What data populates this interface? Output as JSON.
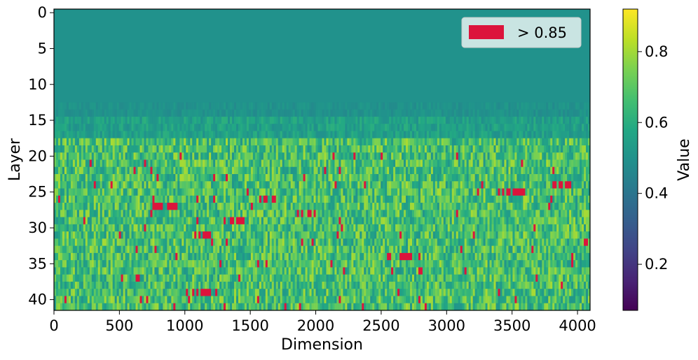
{
  "chart_data": {
    "type": "heatmap",
    "title": "",
    "xlabel": "Dimension",
    "ylabel": "Layer",
    "xlim": [
      0,
      4096
    ],
    "ylim": [
      41.5,
      -0.5
    ],
    "layers": 42,
    "dimensions": 4096,
    "x_ticks": [
      0,
      500,
      1000,
      1500,
      2000,
      2500,
      3000,
      3500,
      4000
    ],
    "y_ticks": [
      0,
      5,
      10,
      15,
      20,
      25,
      30,
      35,
      40
    ],
    "colormap": "viridis",
    "highlight": {
      "threshold": 0.85,
      "color": "#dc143c",
      "label": "> 0.85"
    },
    "legend": {
      "position": "top-right",
      "entries": [
        "> 0.85"
      ]
    },
    "colorbar": {
      "label": "Value",
      "range": [
        0.07,
        0.92
      ],
      "ticks": [
        0.2,
        0.4,
        0.6,
        0.8
      ]
    },
    "layer_profile": {
      "layers_0_to_14_mean": 0.5,
      "layers_15_to_17_mean": 0.55,
      "layers_18_to_41_mean": 0.66,
      "layers_18_to_41_range": [
        0.5,
        0.9
      ]
    },
    "hotspot_rows": [
      {
        "layer": 27,
        "dims": [
          750,
          950
        ]
      },
      {
        "layer": 26,
        "dims": [
          1550,
          1700
        ]
      },
      {
        "layer": 28,
        "dims": [
          1850,
          2000
        ]
      },
      {
        "layer": 29,
        "dims": [
          1300,
          1450
        ]
      },
      {
        "layer": 31,
        "dims": [
          1050,
          1200
        ]
      },
      {
        "layer": 34,
        "dims": [
          2550,
          2800
        ]
      },
      {
        "layer": 37,
        "dims": [
          500,
          700
        ]
      },
      {
        "layer": 39,
        "dims": [
          1050,
          1200
        ]
      },
      {
        "layer": 25,
        "dims": [
          3400,
          3600
        ]
      },
      {
        "layer": 24,
        "dims": [
          3800,
          4000
        ]
      }
    ]
  }
}
